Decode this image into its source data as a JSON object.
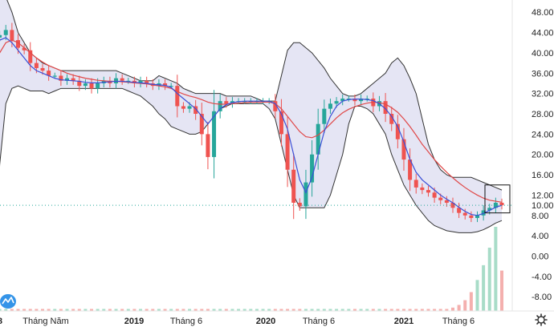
{
  "chart_data": {
    "type": "candlestick",
    "y_axis": {
      "position": "right",
      "ticks": [
        48,
        44,
        40,
        36,
        32,
        28,
        24,
        20,
        16,
        12,
        8,
        4,
        0,
        -4,
        -8
      ],
      "tick_labels": [
        "48.00",
        "44.00",
        "40.00",
        "36.00",
        "32.00",
        "28.00",
        "24.00",
        "20.00",
        "16.00",
        "12.00",
        "8.00",
        "4.00",
        "0.00",
        "-4.00",
        "-8.00"
      ],
      "ylim": [
        -10.8,
        50.4
      ],
      "current_price": 10.0,
      "current_price_label": "10.00"
    },
    "x_axis": {
      "ticks": [
        {
          "label": "8",
          "bold": true
        },
        {
          "label": "Tháng Năm",
          "bold": false
        },
        {
          "label": "2019",
          "bold": true
        },
        {
          "label": "Tháng 6",
          "bold": false
        },
        {
          "label": "2020",
          "bold": true
        },
        {
          "label": "Tháng 6",
          "bold": false
        },
        {
          "label": "2021",
          "bold": true
        },
        {
          "label": "Tháng 6",
          "bold": false
        }
      ]
    },
    "colors": {
      "up": "#26a69a",
      "down": "#ef5350",
      "band_fill": "#dcdcf0",
      "band_line": "#333333",
      "ma_fast": "#3b4fd6",
      "ma_slow": "#e04848",
      "volume_up": "#a8dcc8",
      "volume_down": "#f4b0ae",
      "price_line": "#26a69a"
    },
    "series": {
      "close": [
        43.0,
        43.5,
        44.5,
        42.5,
        41.0,
        40.5,
        38.0,
        37.0,
        36.5,
        35.5,
        35.5,
        34.5,
        35.0,
        34.5,
        33.5,
        34.0,
        33.0,
        34.0,
        34.5,
        34.0,
        35.0,
        34.5,
        34.5,
        34.0,
        34.5,
        34.0,
        33.5,
        34.0,
        33.5,
        33.5,
        29.5,
        29.0,
        29.5,
        28.0,
        24.0,
        19.5,
        28.5,
        30.5,
        30.0,
        30.5,
        30.5,
        30.5,
        30.5,
        30.5,
        30.5,
        30.5,
        28.5,
        24.0,
        17.0,
        10.5,
        9.8,
        14.5,
        20.0,
        26.0,
        29.0,
        30.0,
        30.5,
        31.0,
        31.0,
        30.5,
        31.0,
        31.0,
        29.5,
        30.5,
        28.0,
        26.0,
        23.0,
        19.0,
        15.0,
        13.5,
        13.0,
        12.5,
        11.5,
        11.0,
        10.5,
        9.5,
        8.5,
        8.0,
        7.5,
        8.0,
        9.0,
        9.5,
        10.5,
        10.0
      ],
      "upper_band": [
        50.0,
        50.5,
        51.0,
        48.0,
        44.0,
        42.0,
        40.0,
        39.0,
        38.0,
        37.5,
        37.0,
        36.5,
        36.5,
        36.5,
        36.5,
        36.5,
        36.5,
        36.5,
        36.5,
        36.5,
        36.5,
        36.0,
        35.5,
        35.0,
        34.5,
        34.5,
        34.5,
        35.5,
        35.0,
        34.5,
        34.0,
        33.0,
        32.5,
        32.0,
        32.0,
        32.0,
        32.0,
        32.0,
        31.5,
        31.5,
        31.5,
        31.5,
        31.5,
        31.0,
        30.5,
        30.5,
        30.5,
        35.5,
        40.5,
        42.0,
        42.0,
        41.0,
        40.0,
        38.5,
        37.0,
        35.0,
        33.5,
        32.0,
        31.5,
        31.5,
        32.0,
        33.0,
        34.0,
        35.0,
        36.0,
        38.0,
        39.0,
        37.5,
        35.0,
        32.0,
        27.0,
        22.0,
        19.0,
        17.0,
        16.0,
        15.5,
        15.5,
        15.5,
        15.5,
        15.0,
        14.5,
        14.0,
        13.5,
        13.0
      ],
      "lower_band": [
        -8.0,
        18.0,
        30.0,
        33.0,
        33.5,
        33.0,
        32.5,
        32.5,
        32.5,
        32.0,
        32.5,
        33.0,
        33.0,
        33.0,
        33.0,
        33.0,
        33.0,
        33.0,
        33.0,
        33.0,
        33.0,
        33.0,
        32.5,
        32.0,
        31.5,
        30.5,
        29.5,
        28.0,
        27.0,
        25.5,
        25.0,
        24.5,
        24.0,
        24.0,
        24.5,
        26.0,
        27.5,
        29.0,
        29.5,
        30.0,
        30.0,
        30.0,
        30.0,
        30.0,
        30.0,
        29.0,
        27.0,
        22.0,
        17.0,
        12.0,
        9.5,
        9.5,
        9.5,
        9.5,
        9.5,
        12.0,
        16.0,
        20.0,
        26.0,
        29.5,
        29.5,
        29.0,
        28.0,
        26.0,
        24.0,
        20.0,
        17.0,
        14.0,
        12.0,
        10.0,
        8.5,
        7.0,
        6.0,
        5.5,
        5.0,
        4.8,
        4.6,
        4.6,
        4.6,
        4.8,
        5.2,
        5.8,
        6.5,
        7.0
      ],
      "ma_fast": [
        42.0,
        42.5,
        43.0,
        42.0,
        40.5,
        39.0,
        37.5,
        36.5,
        36.0,
        35.5,
        35.0,
        34.7,
        34.6,
        34.5,
        34.4,
        34.2,
        34.1,
        34.1,
        34.2,
        34.3,
        34.4,
        34.4,
        34.3,
        34.2,
        34.1,
        34.0,
        33.8,
        33.7,
        33.6,
        33.2,
        32.0,
        31.0,
        30.0,
        29.0,
        27.5,
        26.0,
        27.5,
        29.0,
        29.8,
        30.2,
        30.4,
        30.5,
        30.5,
        30.5,
        30.5,
        30.5,
        30.0,
        28.0,
        25.0,
        20.0,
        15.0,
        12.5,
        15.5,
        20.0,
        24.5,
        27.5,
        29.5,
        30.5,
        30.8,
        30.9,
        30.9,
        30.8,
        30.6,
        30.0,
        29.0,
        27.5,
        25.5,
        22.5,
        19.0,
        16.5,
        15.0,
        14.0,
        13.0,
        12.0,
        11.2,
        10.5,
        9.6,
        8.8,
        8.2,
        8.0,
        8.4,
        9.0,
        9.6,
        10.0
      ],
      "ma_slow": [
        37.0,
        40.0,
        42.0,
        42.5,
        42.0,
        41.0,
        40.0,
        39.0,
        38.2,
        37.5,
        37.0,
        36.5,
        36.0,
        35.6,
        35.3,
        35.0,
        34.8,
        34.6,
        34.5,
        34.4,
        34.4,
        34.3,
        34.2,
        34.1,
        34.0,
        33.9,
        33.7,
        33.5,
        33.3,
        33.0,
        32.4,
        31.9,
        31.5,
        31.2,
        30.8,
        30.3,
        30.0,
        29.9,
        29.9,
        30.0,
        30.1,
        30.2,
        30.3,
        30.3,
        30.3,
        30.3,
        30.0,
        29.0,
        27.5,
        26.0,
        24.5,
        23.5,
        23.3,
        23.8,
        24.8,
        26.0,
        27.2,
        28.2,
        28.9,
        29.4,
        29.8,
        30.1,
        30.3,
        30.2,
        29.9,
        29.2,
        28.3,
        27.0,
        25.5,
        23.8,
        22.0,
        20.5,
        19.0,
        17.7,
        16.5,
        15.4,
        14.4,
        13.5,
        12.7,
        12.0,
        11.4,
        11.0,
        10.8,
        10.6
      ],
      "volume": [
        0.3,
        0.3,
        0.3,
        0.3,
        0.3,
        0.3,
        0.3,
        0.3,
        0.3,
        0.3,
        0.3,
        0.3,
        0.3,
        0.3,
        0.3,
        0.3,
        0.3,
        0.3,
        0.3,
        0.3,
        0.3,
        0.3,
        0.3,
        0.3,
        0.3,
        0.3,
        0.3,
        0.3,
        0.3,
        0.3,
        0.3,
        0.3,
        0.3,
        0.3,
        0.3,
        0.3,
        0.3,
        0.3,
        0.3,
        0.3,
        0.3,
        0.3,
        0.3,
        0.3,
        0.3,
        0.3,
        0.3,
        0.3,
        0.3,
        0.3,
        0.3,
        0.3,
        0.3,
        0.3,
        0.3,
        0.3,
        0.3,
        0.3,
        0.3,
        0.3,
        0.3,
        0.3,
        0.3,
        0.3,
        0.3,
        0.3,
        0.3,
        0.3,
        0.3,
        0.3,
        0.3,
        0.3,
        0.3,
        0.3,
        0.3,
        0.5,
        0.9,
        1.6,
        2.8,
        4.6,
        6.8,
        9.4,
        12.5,
        6.0
      ]
    }
  },
  "ui": {
    "logo_icon": "tradingview-mountain-icon",
    "settings_icon": "gear-icon"
  }
}
